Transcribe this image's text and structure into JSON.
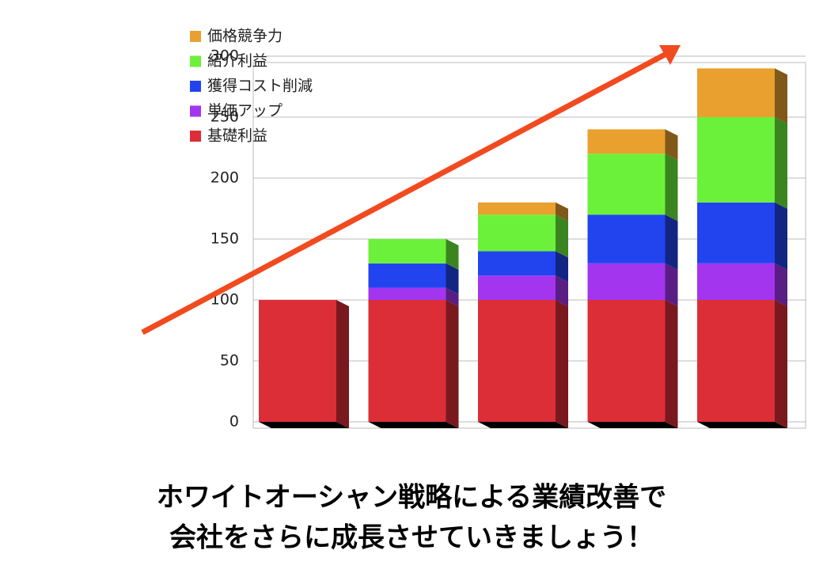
{
  "chart_data": {
    "type": "bar3d-stacked",
    "categories": [
      null,
      null,
      null,
      null,
      null
    ],
    "series": [
      {
        "name": "基礎利益",
        "color": "#dc2e36",
        "values": [
          100,
          100,
          100,
          100,
          100
        ]
      },
      {
        "name": "単価アップ",
        "color": "#a335ef",
        "values": [
          0,
          10,
          20,
          30,
          30
        ]
      },
      {
        "name": "獲得コスト削減",
        "color": "#2144ef",
        "values": [
          0,
          20,
          20,
          40,
          50
        ]
      },
      {
        "name": "紹介利益",
        "color": "#6cf13a",
        "values": [
          0,
          20,
          30,
          50,
          70
        ]
      },
      {
        "name": "価格競争力",
        "color": "#e9a02f",
        "values": [
          0,
          0,
          10,
          20,
          40
        ]
      }
    ],
    "ylim": [
      0,
      300
    ],
    "yticks": [
      0,
      50,
      100,
      150,
      200,
      250,
      300
    ],
    "grid": true
  },
  "caption": [
    "ホワイトオーシャン戦略による業績改善で",
    "会社をさらに成長させていきましょう！"
  ]
}
